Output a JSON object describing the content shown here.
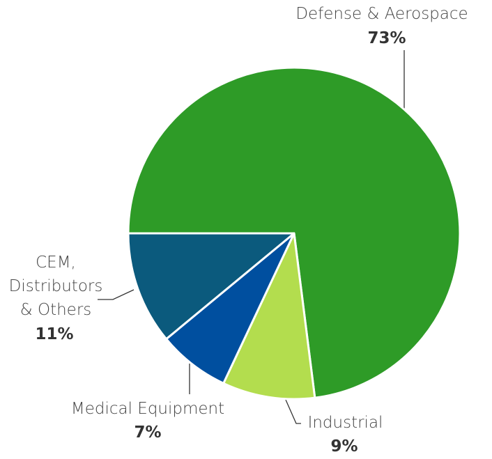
{
  "chart_data": {
    "type": "pie",
    "categories": [
      "Defense & Aerospace",
      "Industrial",
      "Medical Equipment",
      "CEM,\nDistributors\n& Others"
    ],
    "values": [
      73,
      9,
      7,
      11
    ],
    "value_labels": [
      "73%",
      "9%",
      "7%",
      "11%"
    ],
    "colors": [
      "#2e9b27",
      "#b3dd4e",
      "#004f9f",
      "#0b5a7d"
    ]
  }
}
